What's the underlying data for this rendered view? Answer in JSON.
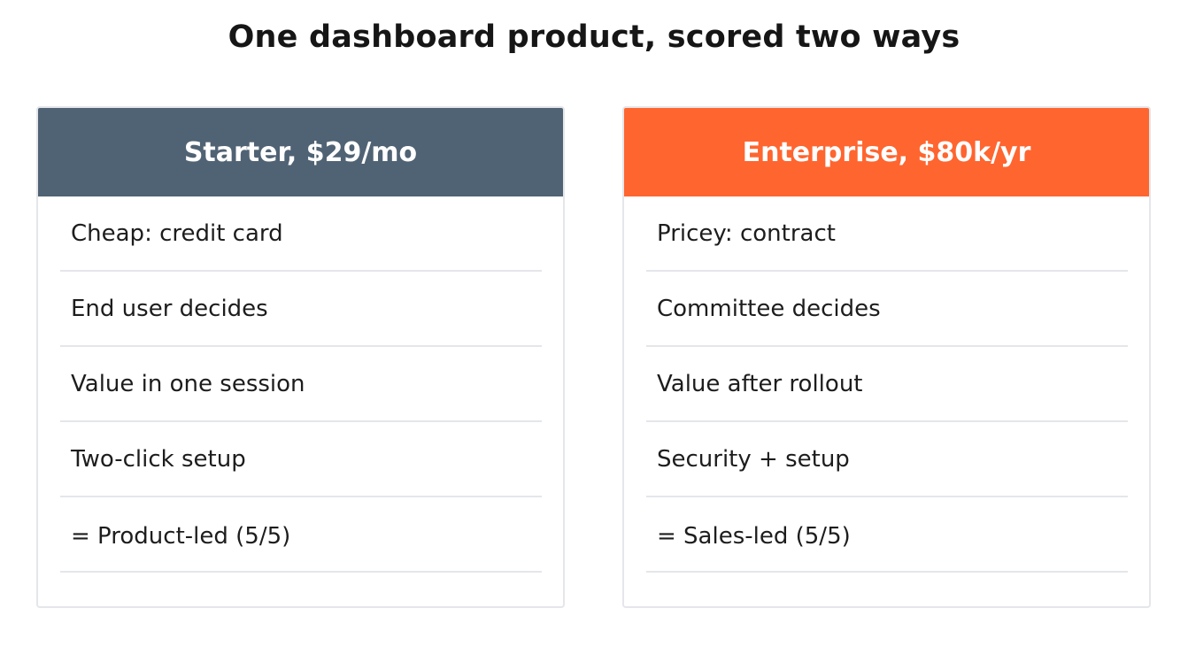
{
  "title": "One dashboard product, scored two ways",
  "colors": {
    "starter_header": "#506374",
    "enterprise_header": "#ff652f",
    "divider": "#e4e6ea",
    "text": "#1d1d1d"
  },
  "cards": [
    {
      "header": "Starter, $29/mo",
      "rows": [
        "Cheap: credit card",
        "End user decides",
        "Value in one session",
        "Two-click setup",
        "= Product-led (5/5)"
      ]
    },
    {
      "header": "Enterprise, $80k/yr",
      "rows": [
        "Pricey: contract",
        "Committee decides",
        "Value after rollout",
        "Security + setup",
        "= Sales-led (5/5)"
      ]
    }
  ]
}
